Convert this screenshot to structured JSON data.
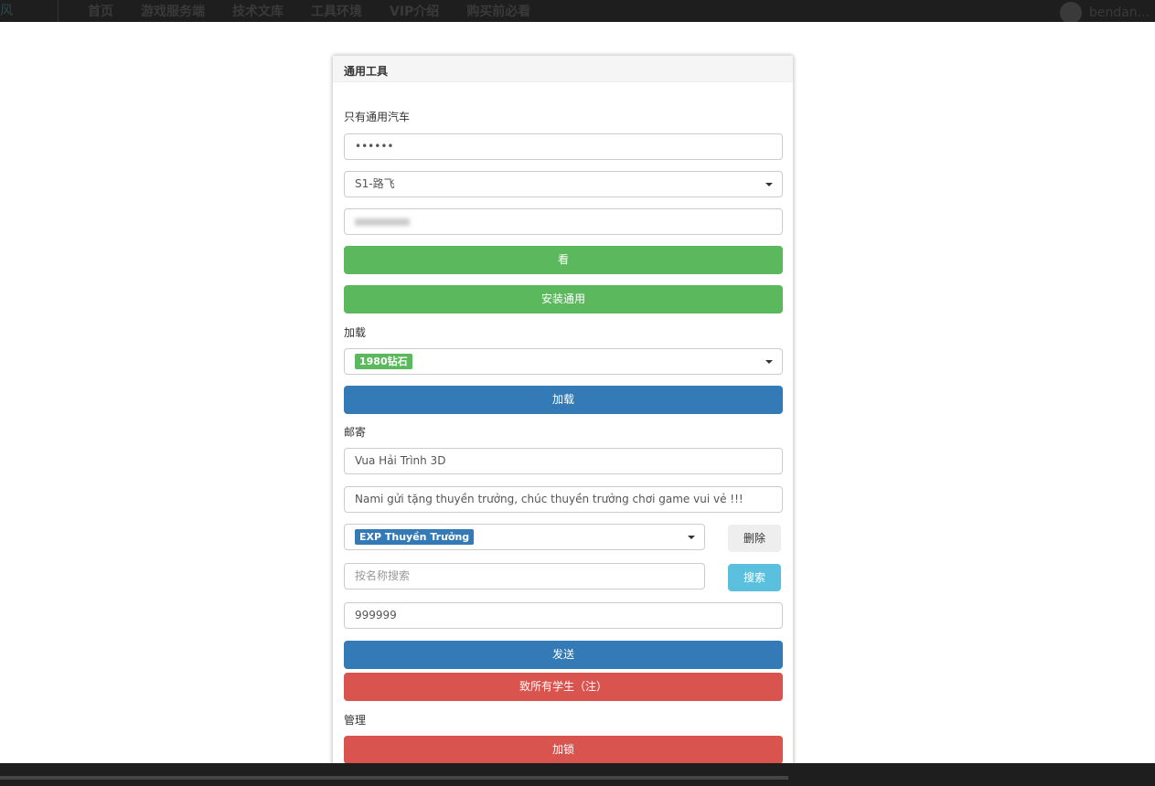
{
  "nav": {
    "logo": "风",
    "items": [
      "首页",
      "游戏服务端",
      "技术文库",
      "工具环境",
      "VIP介绍",
      "购买前必看"
    ],
    "user": "bendan..."
  },
  "panel": {
    "title": "通用工具",
    "section1_label": "只有通用汽车",
    "password_value": "••••••",
    "server_select": "S1-路飞",
    "view_button": "看",
    "install_button": "安装通用",
    "load_label": "加载",
    "load_select_tag": "1980钻石",
    "load_button": "加载",
    "mail_label": "邮寄",
    "mail_title": "Vua Hải Trình 3D",
    "mail_content": "Nami gửi tặng thuyền trưởng, chúc thuyền trưởng chơi game vui vẻ !!!",
    "item_select_tag": "EXP Thuyền Trưởng",
    "delete_button": "删除",
    "search_placeholder": "按名称搜索",
    "search_button": "搜索",
    "quantity_value": "999999",
    "send_button": "发送",
    "send_all_button": "致所有学生（注）",
    "manage_label": "管理",
    "lock_button": "加锁"
  },
  "colors": {
    "success": "#5cb85c",
    "primary": "#337ab7",
    "danger": "#d9534f",
    "info": "#5bc0de"
  }
}
